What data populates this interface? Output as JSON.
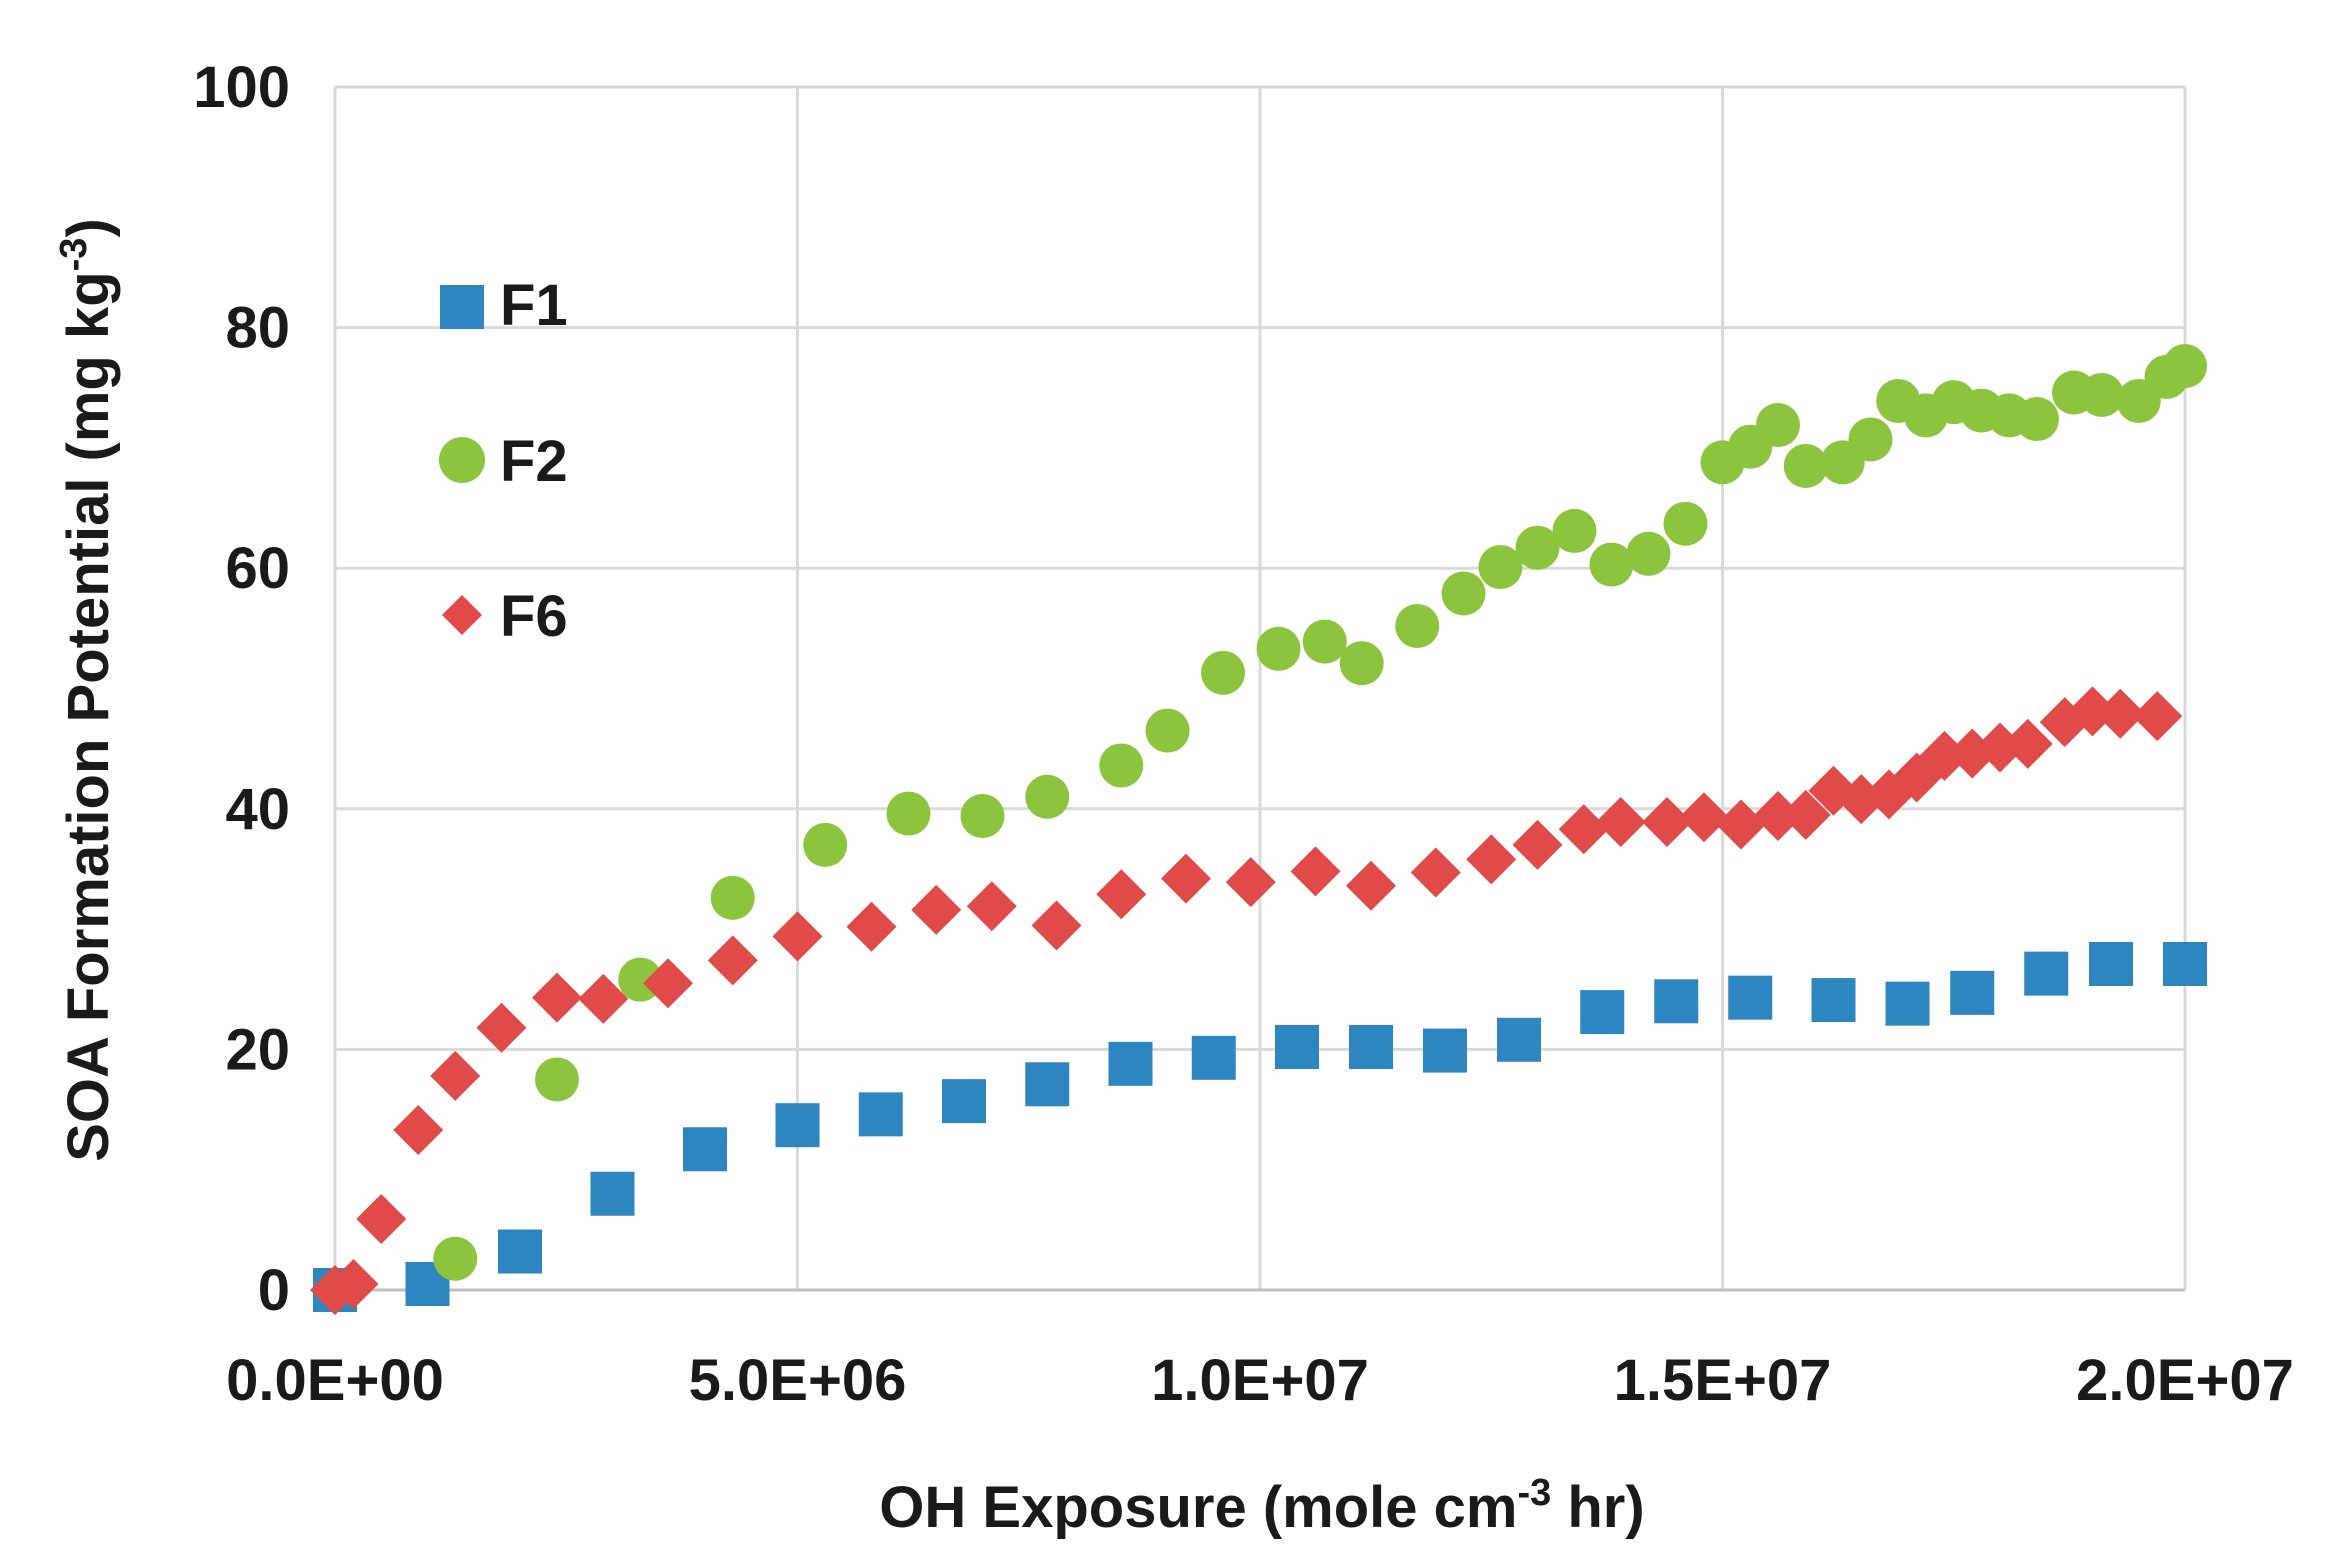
{
  "chart_data": {
    "type": "scatter",
    "title": "",
    "xlabel": {
      "main": "OH Exposure (mole cm",
      "sup": "-3",
      "tail": " hr)"
    },
    "ylabel": {
      "main": "SOA Formation Potential (mg kg",
      "sup": "-3",
      "tail": ")"
    },
    "xlim": [
      0,
      20000000
    ],
    "ylim": [
      0,
      100
    ],
    "x_ticks": [
      {
        "value": 0,
        "label": "0.0E+00"
      },
      {
        "value": 5000000,
        "label": "5.0E+06"
      },
      {
        "value": 10000000,
        "label": "1.0E+07"
      },
      {
        "value": 15000000,
        "label": "1.5E+07"
      },
      {
        "value": 20000000,
        "label": "2.0E+07"
      }
    ],
    "y_ticks": [
      {
        "value": 0,
        "label": "0"
      },
      {
        "value": 20,
        "label": "20"
      },
      {
        "value": 40,
        "label": "40"
      },
      {
        "value": 60,
        "label": "60"
      },
      {
        "value": 80,
        "label": "80"
      },
      {
        "value": 100,
        "label": "100"
      }
    ],
    "grid": true,
    "legend_position": "top-left",
    "series": [
      {
        "name": "F1",
        "marker": "square",
        "color": "#2e86c1",
        "points": [
          [
            0,
            0
          ],
          [
            1000000,
            0.5
          ],
          [
            2000000,
            3.2
          ],
          [
            3000000,
            8
          ],
          [
            4000000,
            11.7
          ],
          [
            5000000,
            13.7
          ],
          [
            5900000,
            14.6
          ],
          [
            6800000,
            15.7
          ],
          [
            7700000,
            17.1
          ],
          [
            8600000,
            18.8
          ],
          [
            9500000,
            19.3
          ],
          [
            10400000,
            20.2
          ],
          [
            11200000,
            20.2
          ],
          [
            12000000,
            19.9
          ],
          [
            12800000,
            20.8
          ],
          [
            13700000,
            23.1
          ],
          [
            14500000,
            24
          ],
          [
            15300000,
            24.3
          ],
          [
            16200000,
            24.1
          ],
          [
            17000000,
            23.8
          ],
          [
            17700000,
            24.7
          ],
          [
            18500000,
            26.3
          ],
          [
            19200000,
            27.1
          ],
          [
            20000000,
            27.1
          ]
        ]
      },
      {
        "name": "F2",
        "marker": "circle",
        "color": "#8cc43d",
        "points": [
          [
            1300000,
            2.6
          ],
          [
            2400000,
            17.5
          ],
          [
            3300000,
            25.8
          ],
          [
            4300000,
            32.6
          ],
          [
            5300000,
            37
          ],
          [
            6200000,
            39.6
          ],
          [
            7000000,
            39.4
          ],
          [
            7700000,
            41
          ],
          [
            8500000,
            43.6
          ],
          [
            9000000,
            46.5
          ],
          [
            9600000,
            51.3
          ],
          [
            10200000,
            53.3
          ],
          [
            10700000,
            53.9
          ],
          [
            11100000,
            52.1
          ],
          [
            11700000,
            55.2
          ],
          [
            12200000,
            57.9
          ],
          [
            12600000,
            60.1
          ],
          [
            13000000,
            61.7
          ],
          [
            13400000,
            63.1
          ],
          [
            13800000,
            60.3
          ],
          [
            14200000,
            61.2
          ],
          [
            14600000,
            63.7
          ],
          [
            15000000,
            68.8
          ],
          [
            15300000,
            70.1
          ],
          [
            15600000,
            71.9
          ],
          [
            15900000,
            68.5
          ],
          [
            16300000,
            68.8
          ],
          [
            16600000,
            70.7
          ],
          [
            16900000,
            73.9
          ],
          [
            17200000,
            72.7
          ],
          [
            17500000,
            73.8
          ],
          [
            17800000,
            73.1
          ],
          [
            18100000,
            72.7
          ],
          [
            18400000,
            72.4
          ],
          [
            18800000,
            74.6
          ],
          [
            19100000,
            74.4
          ],
          [
            19500000,
            73.9
          ],
          [
            19800000,
            75.9
          ],
          [
            20000000,
            76.8
          ]
        ]
      },
      {
        "name": "F6",
        "marker": "diamond",
        "color": "#e04a48",
        "points": [
          [
            0,
            0
          ],
          [
            200000,
            0.5
          ],
          [
            500000,
            5.9
          ],
          [
            900000,
            13.3
          ],
          [
            1300000,
            17.8
          ],
          [
            1800000,
            21.8
          ],
          [
            2400000,
            24.3
          ],
          [
            2900000,
            24.2
          ],
          [
            3600000,
            25.5
          ],
          [
            4300000,
            27.4
          ],
          [
            5000000,
            29.4
          ],
          [
            5800000,
            30.2
          ],
          [
            6500000,
            31.6
          ],
          [
            7100000,
            31.9
          ],
          [
            7800000,
            30.3
          ],
          [
            8500000,
            32.9
          ],
          [
            9200000,
            34.2
          ],
          [
            9900000,
            33.9
          ],
          [
            10600000,
            34.8
          ],
          [
            11200000,
            33.6
          ],
          [
            11900000,
            34.7
          ],
          [
            12500000,
            35.8
          ],
          [
            13000000,
            37
          ],
          [
            13500000,
            38.3
          ],
          [
            13900000,
            38.9
          ],
          [
            14400000,
            38.9
          ],
          [
            14800000,
            39.3
          ],
          [
            15200000,
            38.7
          ],
          [
            15600000,
            39.4
          ],
          [
            15900000,
            39.5
          ],
          [
            16200000,
            41.5
          ],
          [
            16500000,
            40.8
          ],
          [
            16800000,
            41.2
          ],
          [
            17100000,
            42.6
          ],
          [
            17400000,
            44.4
          ],
          [
            17700000,
            44.6
          ],
          [
            18000000,
            45.1
          ],
          [
            18300000,
            45.4
          ],
          [
            18700000,
            47.2
          ],
          [
            19000000,
            48.1
          ],
          [
            19300000,
            47.9
          ],
          [
            19700000,
            47.7
          ]
        ]
      }
    ]
  }
}
